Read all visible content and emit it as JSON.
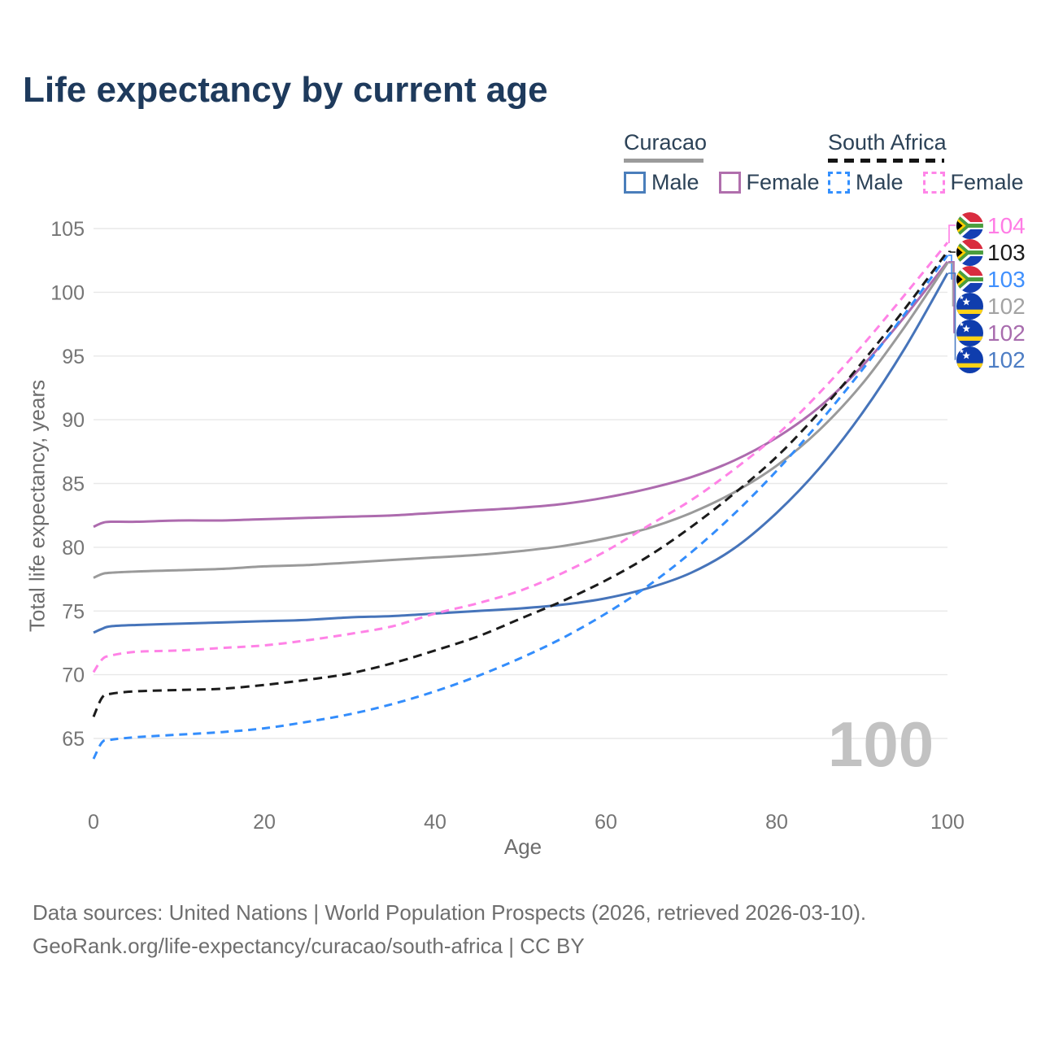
{
  "title": "Life expectancy by current age",
  "legend": {
    "groups": [
      {
        "id": "curacao",
        "label": "Curacao",
        "line_style": "solid",
        "line_color": "#9b9b9b",
        "items": [
          {
            "id": "curacao-male",
            "label": "Male",
            "swatch_color": "#4a7ebb",
            "dashed": false
          },
          {
            "id": "curacao-female",
            "label": "Female",
            "swatch_color": "#b06fad",
            "dashed": false
          }
        ]
      },
      {
        "id": "south-africa",
        "label": "South Africa",
        "line_style": "dashed",
        "line_color": "#151515",
        "items": [
          {
            "id": "south-africa-male",
            "label": "Male",
            "swatch_color": "#3390ff",
            "dashed": true
          },
          {
            "id": "south-africa-female",
            "label": "Female",
            "swatch_color": "#ff85e8",
            "dashed": true
          }
        ]
      }
    ]
  },
  "chart_data": {
    "type": "line",
    "x_label": "Age",
    "y_label": "Total life expectancy, years",
    "x_ticks": [
      0,
      20,
      40,
      60,
      80,
      100
    ],
    "y_ticks": [
      65,
      70,
      75,
      80,
      85,
      90,
      95,
      100,
      105
    ],
    "xlim": [
      0,
      100
    ],
    "ylim": [
      63,
      105.5
    ],
    "grid": true,
    "legend_position": "top-right",
    "watermark": "100",
    "x": [
      0,
      1,
      2,
      5,
      10,
      15,
      20,
      25,
      30,
      35,
      40,
      45,
      50,
      55,
      60,
      65,
      70,
      75,
      80,
      85,
      90,
      95,
      100
    ],
    "series": [
      {
        "id": "curacao-female",
        "name": "Curacao Female",
        "color": "#ad6bae",
        "dash": "solid",
        "values": [
          81.6,
          81.9,
          82.0,
          82.0,
          82.1,
          82.1,
          82.2,
          82.3,
          82.4,
          82.5,
          82.7,
          82.9,
          83.1,
          83.4,
          83.9,
          84.6,
          85.5,
          86.8,
          88.6,
          91.0,
          94.2,
          98.1,
          102.4
        ]
      },
      {
        "id": "curacao-both",
        "name": "Curacao Both sexes",
        "color": "#9a9a9a",
        "dash": "solid",
        "values": [
          77.6,
          77.9,
          78.0,
          78.1,
          78.2,
          78.3,
          78.5,
          78.6,
          78.8,
          79.0,
          79.2,
          79.4,
          79.7,
          80.1,
          80.7,
          81.5,
          82.7,
          84.3,
          86.4,
          89.2,
          92.8,
          97.3,
          102.3
        ]
      },
      {
        "id": "curacao-male",
        "name": "Curacao Male",
        "color": "#4674ba",
        "dash": "solid",
        "values": [
          73.3,
          73.6,
          73.8,
          73.9,
          74.0,
          74.1,
          74.2,
          74.3,
          74.5,
          74.6,
          74.8,
          75.0,
          75.2,
          75.5,
          76.0,
          76.8,
          78.0,
          79.9,
          82.7,
          86.2,
          90.5,
          95.6,
          101.5
        ]
      },
      {
        "id": "south-africa-female",
        "name": "South Africa Female",
        "color": "#ff82e6",
        "dash": "dashed",
        "values": [
          70.2,
          71.2,
          71.5,
          71.8,
          71.9,
          72.1,
          72.3,
          72.7,
          73.2,
          73.8,
          74.8,
          75.6,
          76.6,
          78.0,
          79.7,
          81.7,
          83.7,
          86.1,
          88.8,
          92.1,
          95.8,
          99.8,
          103.9
        ]
      },
      {
        "id": "south-africa-male",
        "name": "South Africa Male",
        "color": "#338dfc",
        "dash": "dashed",
        "values": [
          63.4,
          64.7,
          64.9,
          65.1,
          65.3,
          65.5,
          65.8,
          66.3,
          66.9,
          67.7,
          68.7,
          69.9,
          71.3,
          72.9,
          74.8,
          77.0,
          79.6,
          82.6,
          86.0,
          89.8,
          93.9,
          98.3,
          102.9
        ]
      },
      {
        "id": "south-africa-both",
        "name": "South Africa Both sexes",
        "color": "#1b1b1b",
        "dash": "dashed",
        "values": [
          66.7,
          68.2,
          68.5,
          68.7,
          68.8,
          68.9,
          69.2,
          69.6,
          70.1,
          70.9,
          71.9,
          73.0,
          74.4,
          75.8,
          77.4,
          79.3,
          81.6,
          84.2,
          87.1,
          90.6,
          94.5,
          98.7,
          103.2
        ]
      }
    ]
  },
  "end_labels": [
    {
      "value": "104",
      "color": "#ff7ce5",
      "flag": "south-africa",
      "series": "south-africa-female"
    },
    {
      "value": "103",
      "color": "#1b1b1b",
      "flag": "south-africa",
      "series": "south-africa-both"
    },
    {
      "value": "103",
      "color": "#4090fd",
      "flag": "south-africa",
      "series": "south-africa-male"
    },
    {
      "value": "102",
      "color": "#a3a3a3",
      "flag": "curacao",
      "series": "curacao-both"
    },
    {
      "value": "102",
      "color": "#a86cae",
      "flag": "curacao",
      "series": "curacao-female"
    },
    {
      "value": "102",
      "color": "#4d7dc4",
      "flag": "curacao",
      "series": "curacao-male"
    }
  ],
  "footer": {
    "line1": "Data sources: United Nations | World Population Prospects (2026, retrieved 2026-03-10).",
    "line2": "GeoRank.org/life-expectancy/curacao/south-africa | CC BY"
  }
}
